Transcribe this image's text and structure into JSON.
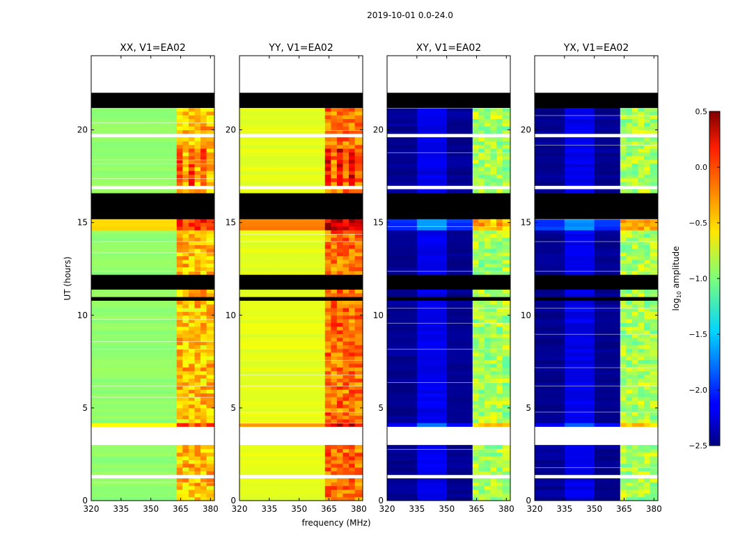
{
  "chart_data": {
    "type": "heatmap",
    "suptitle": "2019-10-01 0.0-24.0",
    "xlabel": "frequency (MHz)",
    "ylabel": "UT (hours)",
    "xlim": [
      320,
      382
    ],
    "ylim": [
      0,
      24
    ],
    "xticks": [
      320,
      335,
      350,
      365,
      380
    ],
    "yticks": [
      0,
      5,
      10,
      15,
      20
    ],
    "panels": [
      {
        "title": "XX, V1=EA02",
        "product": "parallel",
        "base_log_amp": -0.95
      },
      {
        "title": "YY, V1=EA02",
        "product": "parallel",
        "base_log_amp": -0.7
      },
      {
        "title": "XY, V1=EA02",
        "product": "cross",
        "base_log_amp": -2.3
      },
      {
        "title": "YX, V1=EA02",
        "product": "cross",
        "base_log_amp": -2.3
      }
    ],
    "rfi_band_mhz": [
      363,
      380
    ],
    "flagged_time_ranges_hr": [
      [
        21.3,
        22.0
      ],
      [
        15.3,
        16.7
      ],
      [
        11.5,
        12.2
      ],
      [
        10.8,
        10.95
      ]
    ],
    "no_data_ranges_hr": [
      [
        22.1,
        24.0
      ],
      [
        3.1,
        4.0
      ],
      [
        16.85,
        17.1
      ],
      [
        19.7,
        19.85
      ],
      [
        1.3,
        1.45
      ]
    ],
    "colorbar": {
      "label": "log",
      "label_sub": "10",
      "label_rest": " amplitude",
      "min": -2.5,
      "max": 0.5,
      "ticks": [
        "0.5",
        "0.0",
        "−0.5",
        "−1.0",
        "−1.5",
        "−2.0",
        "−2.5"
      ],
      "tick_values": [
        0.5,
        0.0,
        -0.5,
        -1.0,
        -1.5,
        -2.0,
        -2.5
      ],
      "colormap": "jet"
    }
  }
}
